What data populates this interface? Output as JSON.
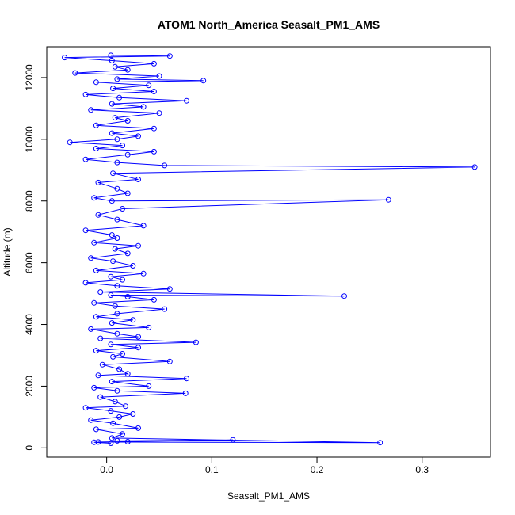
{
  "chart_data": {
    "type": "line",
    "title": "ATOM1 North_America Seasalt_PM1_AMS",
    "xlabel": "Seasalt_PM1_AMS",
    "ylabel": "Altitude (m)",
    "xlim": [
      -0.057,
      0.365
    ],
    "ylim": [
      -300,
      13000
    ],
    "x_ticks": [
      0.0,
      0.1,
      0.2,
      0.3
    ],
    "x_tick_labels": [
      "0.0",
      "0.1",
      "0.2",
      "0.3"
    ],
    "y_ticks": [
      0,
      2000,
      4000,
      6000,
      8000,
      10000,
      12000
    ],
    "y_tick_labels": [
      "0",
      "2000",
      "4000",
      "6000",
      "8000",
      "10000",
      "12000"
    ],
    "grid": false,
    "legend": "none",
    "marker": "open-circle",
    "series_color": "#0000ff",
    "series": [
      {
        "x": [
          0.004,
          -0.012,
          0.02,
          0.01,
          0.12,
          -0.008,
          0.26,
          0.005,
          0.015,
          -0.01,
          0.03,
          0.006,
          -0.015,
          0.012,
          0.025,
          0.004,
          -0.02,
          0.018,
          0.008,
          -0.006,
          0.075,
          0.01,
          -0.012,
          0.04,
          0.005,
          0.076,
          -0.008,
          0.02,
          0.012,
          -0.004,
          0.06,
          0.006,
          0.015,
          -0.01,
          0.03,
          0.004,
          0.085,
          -0.006,
          0.03,
          0.01,
          -0.015,
          0.04,
          0.005,
          0.025,
          -0.01,
          0.01,
          0.055,
          0.008,
          -0.012,
          0.045,
          0.02,
          0.004,
          0.226,
          -0.006,
          0.06,
          0.01,
          -0.02,
          0.015,
          0.004,
          0.035,
          -0.01,
          0.025,
          0.006,
          -0.015,
          0.02,
          0.008,
          0.03,
          -0.012,
          0.01,
          0.005,
          -0.02,
          0.035,
          0.01,
          -0.008,
          0.015,
          0.268,
          0.005,
          -0.012,
          0.02,
          0.01,
          -0.008,
          0.03,
          0.006,
          0.35,
          0.055,
          0.01,
          -0.02,
          0.02,
          0.045,
          -0.01,
          0.015,
          -0.035,
          0.01,
          0.03,
          0.005,
          0.045,
          -0.01,
          0.02,
          0.008,
          0.05,
          -0.015,
          0.035,
          0.005,
          0.076,
          0.012,
          -0.02,
          0.045,
          0.006,
          0.04,
          -0.01,
          0.092,
          0.01,
          0.05,
          -0.03,
          0.02,
          0.008,
          0.045,
          0.005,
          -0.04,
          0.06,
          0.004
        ],
        "y": [
          150,
          180,
          200,
          230,
          260,
          190,
          170,
          320,
          450,
          600,
          640,
          800,
          900,
          1000,
          1100,
          1200,
          1300,
          1350,
          1500,
          1650,
          1770,
          1850,
          1950,
          2000,
          2150,
          2250,
          2350,
          2400,
          2550,
          2700,
          2800,
          2950,
          3050,
          3150,
          3250,
          3350,
          3420,
          3550,
          3600,
          3700,
          3850,
          3900,
          4050,
          4150,
          4250,
          4350,
          4500,
          4600,
          4700,
          4800,
          4900,
          4950,
          4920,
          5050,
          5150,
          5250,
          5350,
          5450,
          5550,
          5650,
          5750,
          5900,
          6050,
          6150,
          6300,
          6450,
          6550,
          6650,
          6800,
          6900,
          7050,
          7200,
          7400,
          7550,
          7750,
          8040,
          8000,
          8100,
          8250,
          8400,
          8600,
          8700,
          8900,
          9100,
          9150,
          9250,
          9350,
          9500,
          9600,
          9700,
          9800,
          9900,
          10000,
          10100,
          10200,
          10350,
          10450,
          10600,
          10700,
          10850,
          10950,
          11050,
          11150,
          11250,
          11350,
          11450,
          11550,
          11650,
          11750,
          11850,
          11900,
          11950,
          12050,
          12150,
          12250,
          12350,
          12450,
          12550,
          12650,
          12700,
          12720
        ]
      }
    ]
  }
}
